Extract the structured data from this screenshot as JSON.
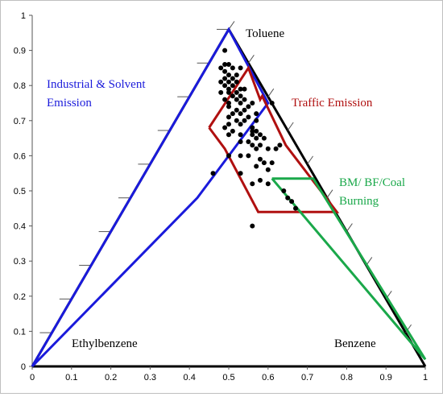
{
  "chart_data": {
    "type": "scatter",
    "title": "",
    "xlabel": "",
    "ylabel": "",
    "xlim": [
      0,
      1
    ],
    "ylim": [
      0,
      1
    ],
    "x_ticks": [
      "0",
      "0.1",
      "0.2",
      "0.3",
      "0.4",
      "0.5",
      "0.6",
      "0.7",
      "0.8",
      "0.9",
      "1"
    ],
    "y_ticks": [
      "0",
      "0.1",
      "0.2",
      "0.3",
      "0.4",
      "0.5",
      "0.6",
      "0.7",
      "0.8",
      "0.9",
      "1"
    ],
    "vertex_labels": {
      "top": "Toluene",
      "left": "Ethylbenzene",
      "right": "Benzene"
    },
    "triangle": [
      [
        0,
        0
      ],
      [
        0.5,
        0.96
      ],
      [
        1,
        0
      ]
    ],
    "regions": [
      {
        "name": "Industrial & Solvent Emission",
        "label_lines": [
          "Industrial & Solvent",
          "Emission"
        ],
        "color": "#1a1adb",
        "points": [
          [
            0.0,
            0.0
          ],
          [
            0.5,
            0.96
          ],
          [
            0.6,
            0.75
          ],
          [
            0.42,
            0.48
          ],
          [
            0.0,
            0.0
          ]
        ]
      },
      {
        "name": "Traffic Emission",
        "label_lines": [
          "Traffic Emission"
        ],
        "color": "#b01010",
        "points": [
          [
            0.45,
            0.68
          ],
          [
            0.55,
            0.85
          ],
          [
            0.58,
            0.76
          ],
          [
            0.585,
            0.77
          ],
          [
            0.645,
            0.63
          ],
          [
            0.775,
            0.44
          ],
          [
            0.575,
            0.44
          ],
          [
            0.49,
            0.62
          ],
          [
            0.45,
            0.68
          ]
        ]
      },
      {
        "name": "BM/ BF/Coal Burning",
        "label_lines": [
          "BM/ BF/Coal",
          "Burning"
        ],
        "color": "#1aa84a",
        "points": [
          [
            0.61,
            0.535
          ],
          [
            0.715,
            0.535
          ],
          [
            1.0,
            0.02
          ],
          [
            0.61,
            0.535
          ]
        ]
      }
    ],
    "points": [
      [
        0.49,
        0.9
      ],
      [
        0.49,
        0.86
      ],
      [
        0.5,
        0.86
      ],
      [
        0.48,
        0.85
      ],
      [
        0.51,
        0.85
      ],
      [
        0.53,
        0.85
      ],
      [
        0.49,
        0.84
      ],
      [
        0.5,
        0.83
      ],
      [
        0.52,
        0.83
      ],
      [
        0.49,
        0.82
      ],
      [
        0.51,
        0.82
      ],
      [
        0.48,
        0.81
      ],
      [
        0.5,
        0.81
      ],
      [
        0.52,
        0.81
      ],
      [
        0.49,
        0.8
      ],
      [
        0.51,
        0.8
      ],
      [
        0.5,
        0.79
      ],
      [
        0.53,
        0.79
      ],
      [
        0.54,
        0.79
      ],
      [
        0.48,
        0.78
      ],
      [
        0.5,
        0.78
      ],
      [
        0.52,
        0.78
      ],
      [
        0.51,
        0.77
      ],
      [
        0.53,
        0.77
      ],
      [
        0.49,
        0.76
      ],
      [
        0.52,
        0.76
      ],
      [
        0.54,
        0.76
      ],
      [
        0.5,
        0.75
      ],
      [
        0.53,
        0.75
      ],
      [
        0.56,
        0.75
      ],
      [
        0.61,
        0.75
      ],
      [
        0.5,
        0.74
      ],
      [
        0.55,
        0.74
      ],
      [
        0.52,
        0.73
      ],
      [
        0.54,
        0.73
      ],
      [
        0.51,
        0.72
      ],
      [
        0.53,
        0.72
      ],
      [
        0.57,
        0.72
      ],
      [
        0.5,
        0.71
      ],
      [
        0.55,
        0.71
      ],
      [
        0.52,
        0.7
      ],
      [
        0.54,
        0.7
      ],
      [
        0.57,
        0.7
      ],
      [
        0.5,
        0.69
      ],
      [
        0.53,
        0.69
      ],
      [
        0.56,
        0.68
      ],
      [
        0.49,
        0.68
      ],
      [
        0.51,
        0.67
      ],
      [
        0.56,
        0.67
      ],
      [
        0.57,
        0.67
      ],
      [
        0.5,
        0.66
      ],
      [
        0.53,
        0.66
      ],
      [
        0.56,
        0.66
      ],
      [
        0.58,
        0.66
      ],
      [
        0.57,
        0.65
      ],
      [
        0.59,
        0.65
      ],
      [
        0.53,
        0.64
      ],
      [
        0.55,
        0.64
      ],
      [
        0.56,
        0.63
      ],
      [
        0.58,
        0.63
      ],
      [
        0.57,
        0.62
      ],
      [
        0.6,
        0.62
      ],
      [
        0.62,
        0.62
      ],
      [
        0.63,
        0.63
      ],
      [
        0.5,
        0.6
      ],
      [
        0.53,
        0.6
      ],
      [
        0.55,
        0.6
      ],
      [
        0.58,
        0.59
      ],
      [
        0.59,
        0.58
      ],
      [
        0.61,
        0.58
      ],
      [
        0.57,
        0.57
      ],
      [
        0.6,
        0.56
      ],
      [
        0.46,
        0.55
      ],
      [
        0.53,
        0.55
      ],
      [
        0.58,
        0.53
      ],
      [
        0.6,
        0.52
      ],
      [
        0.56,
        0.52
      ],
      [
        0.64,
        0.5
      ],
      [
        0.65,
        0.48
      ],
      [
        0.66,
        0.47
      ],
      [
        0.67,
        0.45
      ],
      [
        0.56,
        0.4
      ]
    ]
  }
}
